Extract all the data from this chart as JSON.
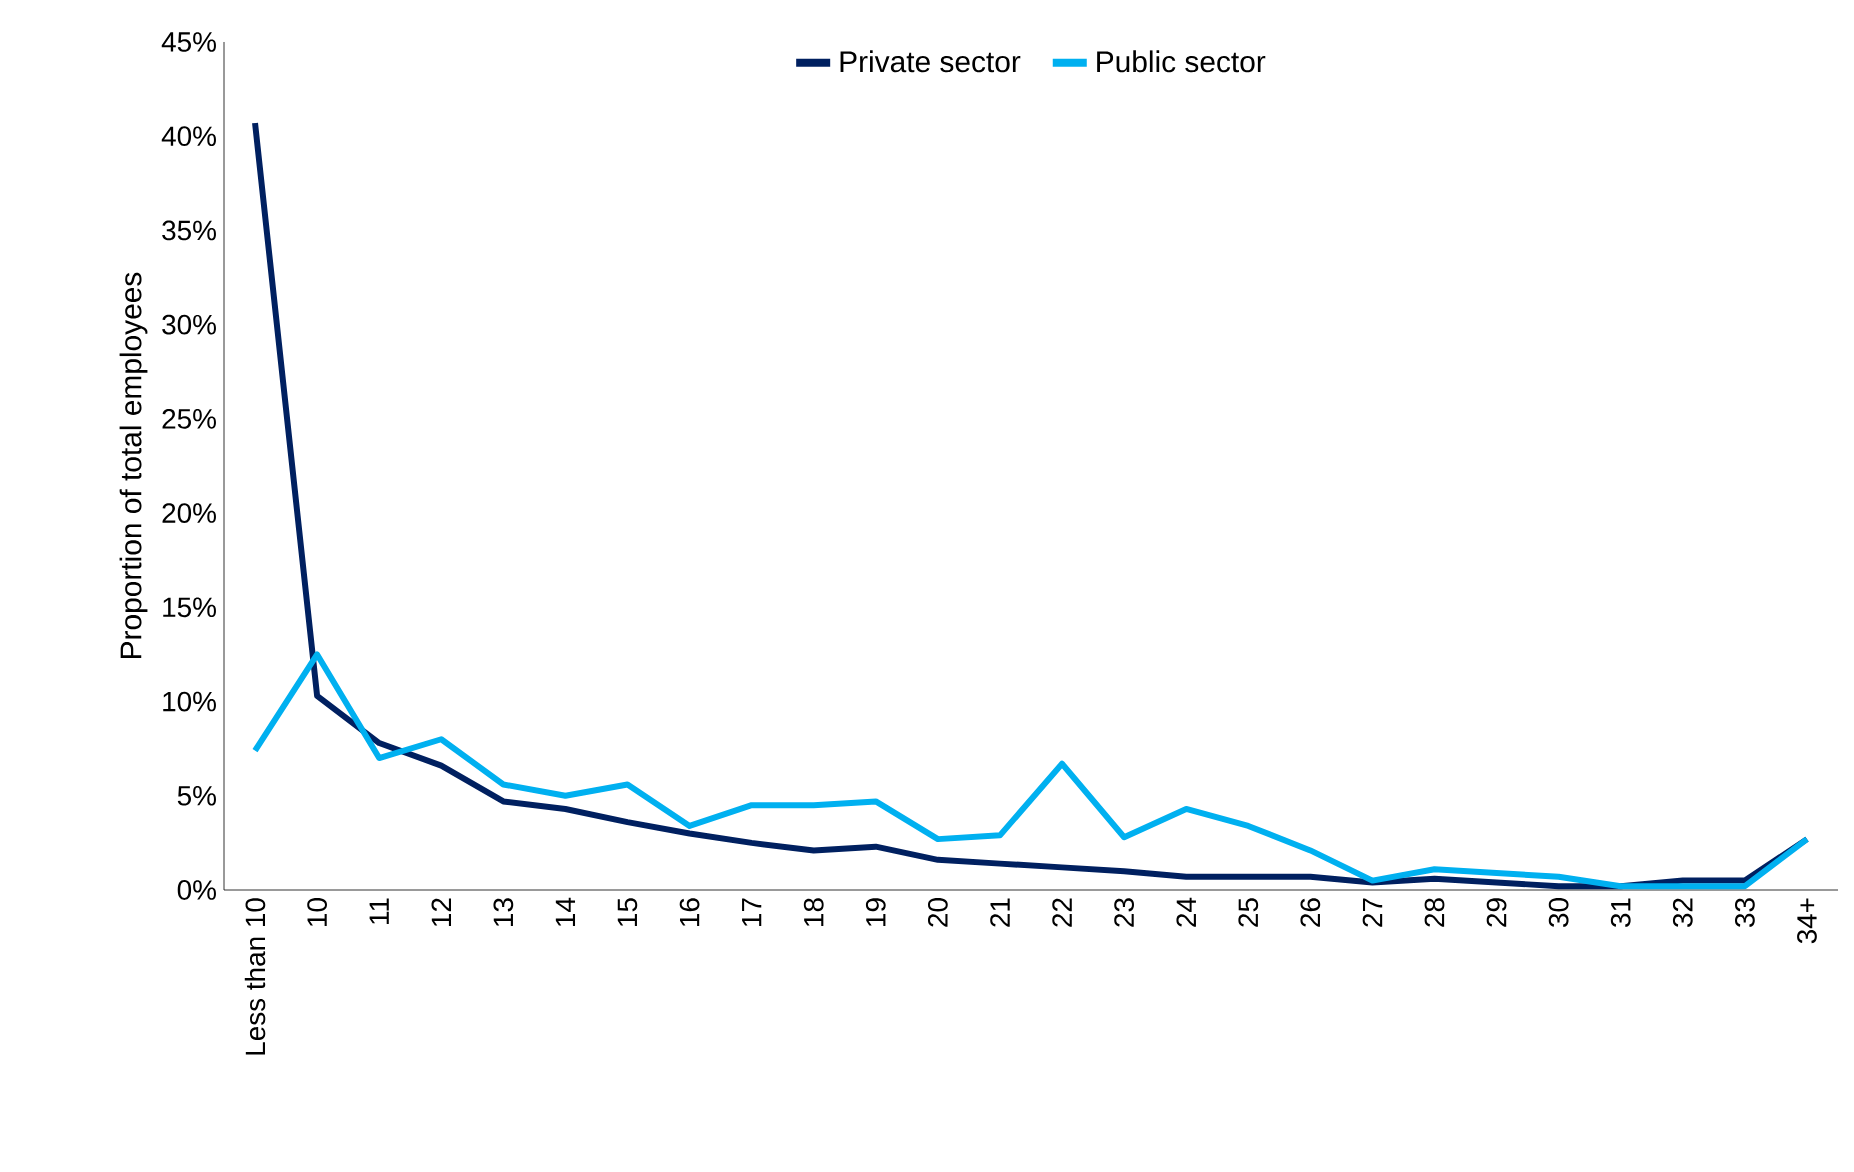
{
  "chart_data": {
    "type": "line",
    "ylabel": "Proportion of total employees",
    "categories": [
      "Less than 10",
      "10",
      "11",
      "12",
      "13",
      "14",
      "15",
      "16",
      "17",
      "18",
      "19",
      "20",
      "21",
      "22",
      "23",
      "24",
      "25",
      "26",
      "27",
      "28",
      "29",
      "30",
      "31",
      "32",
      "33",
      "34+"
    ],
    "series": [
      {
        "name": "Private sector",
        "color": "#002060",
        "values": [
          40.7,
          10.3,
          7.8,
          6.6,
          4.7,
          4.3,
          3.6,
          3.0,
          2.5,
          2.1,
          2.3,
          1.6,
          1.4,
          1.2,
          1.0,
          0.7,
          0.7,
          0.7,
          0.4,
          0.6,
          0.4,
          0.2,
          0.2,
          0.5,
          0.5,
          2.7
        ]
      },
      {
        "name": "Public sector",
        "color": "#00b0f0",
        "values": [
          7.4,
          12.5,
          7.0,
          8.0,
          5.6,
          5.0,
          5.6,
          3.4,
          4.5,
          4.5,
          4.7,
          2.7,
          2.9,
          6.7,
          2.8,
          4.3,
          3.4,
          2.1,
          0.5,
          1.1,
          0.9,
          0.7,
          0.2,
          0.2,
          0.2,
          2.7
        ]
      }
    ],
    "ylim": [
      0,
      45
    ],
    "yticks": [
      {
        "value": 0,
        "label": "0%"
      },
      {
        "value": 5,
        "label": "5%"
      },
      {
        "value": 10,
        "label": "10%"
      },
      {
        "value": 15,
        "label": "15%"
      },
      {
        "value": 20,
        "label": "20%"
      },
      {
        "value": 25,
        "label": "25%"
      },
      {
        "value": 30,
        "label": "30%"
      },
      {
        "value": 35,
        "label": "35%"
      },
      {
        "value": 40,
        "label": "40%"
      },
      {
        "value": 45,
        "label": "45%"
      }
    ],
    "legend": "top",
    "grid": false,
    "marker": "none",
    "line_style": "solid"
  }
}
